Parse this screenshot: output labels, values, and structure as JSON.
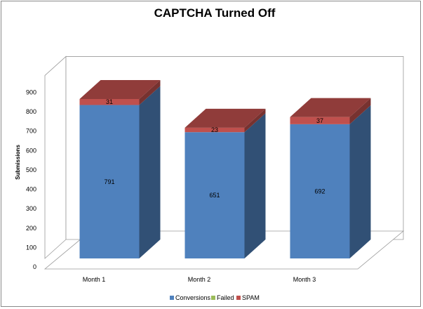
{
  "chart_data": {
    "type": "bar",
    "stacked": true,
    "three_d": true,
    "title": "CAPTCHA Turned Off",
    "xlabel": "",
    "ylabel": "Submissions",
    "ylim": [
      0,
      900
    ],
    "yticks": [
      0,
      100,
      200,
      300,
      400,
      500,
      600,
      700,
      800,
      900
    ],
    "grid": false,
    "legend_position": "bottom",
    "categories": [
      "Month 1",
      "Month 2",
      "Month 3"
    ],
    "series": [
      {
        "name": "Conversions",
        "values": [
          791,
          651,
          692
        ],
        "color": "#4F81BD"
      },
      {
        "name": "Failed",
        "values": [
          0,
          0,
          0
        ],
        "color": "#9BBB59"
      },
      {
        "name": "SPAM",
        "values": [
          31,
          23,
          37
        ],
        "color": "#C0504D"
      }
    ]
  }
}
